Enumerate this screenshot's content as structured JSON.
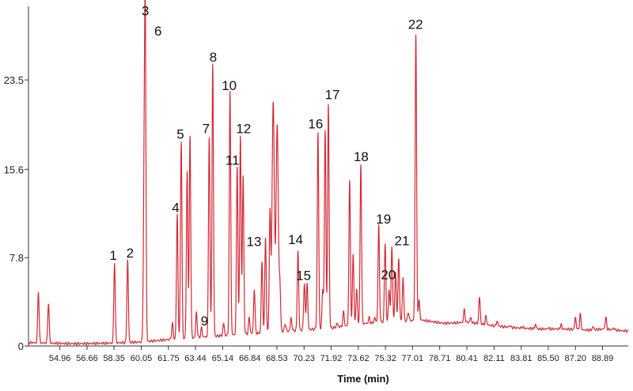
{
  "colors": {
    "trace": "#d42a36",
    "axis": "#333333",
    "text": "#111111"
  },
  "chart_data": {
    "type": "line",
    "title": "",
    "xlabel": "Time (min)",
    "ylabel": "",
    "xlim": [
      53.0,
      90.5
    ],
    "ylim": [
      0,
      30.0
    ],
    "x_ticks": [
      "54.96",
      "56.66",
      "58.35",
      "60.05",
      "61.75",
      "63.44",
      "65.14",
      "66.84",
      "68.53",
      "70.23",
      "71.92",
      "73.62",
      "75.32",
      "77.01",
      "78.71",
      "80.41",
      "82.11",
      "83.81",
      "85.50",
      "87.20",
      "88.89"
    ],
    "y_ticks": [
      "0",
      "7.8",
      "15.6",
      "23.5"
    ],
    "grid": false,
    "legend": "none",
    "baseline": [
      [
        53.0,
        0.3
      ],
      [
        54.5,
        0.25
      ],
      [
        56.0,
        0.2
      ],
      [
        58.0,
        0.25
      ],
      [
        60.0,
        0.35
      ],
      [
        62.0,
        0.6
      ],
      [
        64.0,
        0.8
      ],
      [
        66.0,
        1.0
      ],
      [
        68.0,
        1.2
      ],
      [
        70.0,
        1.4
      ],
      [
        72.0,
        1.6
      ],
      [
        73.5,
        1.9
      ],
      [
        75.0,
        2.1
      ],
      [
        76.5,
        2.2
      ],
      [
        77.5,
        2.3
      ],
      [
        79.0,
        2.0
      ],
      [
        80.5,
        2.1
      ],
      [
        82.0,
        1.8
      ],
      [
        83.5,
        1.6
      ],
      [
        85.0,
        1.5
      ],
      [
        86.5,
        1.5
      ],
      [
        88.0,
        1.4
      ],
      [
        89.0,
        1.5
      ],
      [
        90.5,
        1.3
      ]
    ],
    "peaks": [
      {
        "rt": 53.62,
        "h": 4.8,
        "label": ""
      },
      {
        "rt": 54.25,
        "h": 3.8,
        "label": ""
      },
      {
        "rt": 58.38,
        "h": 7.4,
        "label": "1"
      },
      {
        "rt": 59.2,
        "h": 7.6,
        "label": "2"
      },
      {
        "rt": 60.3,
        "h": 29.0,
        "label": "3"
      },
      {
        "rt": 60.22,
        "h": 12.0,
        "label": ""
      },
      {
        "rt": 62.0,
        "h": 2.0,
        "label": ""
      },
      {
        "rt": 62.3,
        "h": 11.6,
        "label": "4"
      },
      {
        "rt": 62.55,
        "h": 18.1,
        "label": "5"
      },
      {
        "rt": 62.92,
        "h": 15.4,
        "label": ""
      },
      {
        "rt": 63.1,
        "h": 18.6,
        "label": "6"
      },
      {
        "rt": 63.5,
        "h": 3.0,
        "label": ""
      },
      {
        "rt": 63.82,
        "h": 1.6,
        "label": "9"
      },
      {
        "rt": 64.3,
        "h": 18.5,
        "label": "7"
      },
      {
        "rt": 64.52,
        "h": 24.9,
        "label": "8"
      },
      {
        "rt": 65.2,
        "h": 2.0,
        "label": ""
      },
      {
        "rt": 65.6,
        "h": 22.4,
        "label": "10"
      },
      {
        "rt": 66.05,
        "h": 15.8,
        "label": "11"
      },
      {
        "rt": 66.25,
        "h": 18.6,
        "label": "12"
      },
      {
        "rt": 66.42,
        "h": 15.0,
        "label": ""
      },
      {
        "rt": 66.8,
        "h": 2.5,
        "label": ""
      },
      {
        "rt": 67.12,
        "h": 5.0,
        "label": "13"
      },
      {
        "rt": 67.6,
        "h": 7.4,
        "label": ""
      },
      {
        "rt": 67.82,
        "h": 9.5,
        "label": ""
      },
      {
        "rt": 68.1,
        "h": 11.8,
        "label": ""
      },
      {
        "rt": 68.3,
        "h": 21.6,
        "label": ""
      },
      {
        "rt": 68.55,
        "h": 19.4,
        "label": ""
      },
      {
        "rt": 68.72,
        "h": 5.0,
        "label": ""
      },
      {
        "rt": 69.05,
        "h": 2.0,
        "label": ""
      },
      {
        "rt": 69.42,
        "h": 2.5,
        "label": ""
      },
      {
        "rt": 69.85,
        "h": 8.4,
        "label": "14"
      },
      {
        "rt": 70.25,
        "h": 5.6,
        "label": "15"
      },
      {
        "rt": 70.42,
        "h": 5.6,
        "label": ""
      },
      {
        "rt": 71.1,
        "h": 18.8,
        "label": "16"
      },
      {
        "rt": 71.4,
        "h": 5.0,
        "label": ""
      },
      {
        "rt": 71.55,
        "h": 19.0,
        "label": ""
      },
      {
        "rt": 71.75,
        "h": 21.3,
        "label": "17"
      },
      {
        "rt": 72.3,
        "h": 2.0,
        "label": ""
      },
      {
        "rt": 72.7,
        "h": 3.0,
        "label": ""
      },
      {
        "rt": 73.08,
        "h": 14.6,
        "label": ""
      },
      {
        "rt": 73.3,
        "h": 8.0,
        "label": ""
      },
      {
        "rt": 73.52,
        "h": 5.0,
        "label": ""
      },
      {
        "rt": 73.78,
        "h": 16.1,
        "label": "18"
      },
      {
        "rt": 74.0,
        "h": 2.0,
        "label": ""
      },
      {
        "rt": 74.3,
        "h": 2.5,
        "label": ""
      },
      {
        "rt": 74.65,
        "h": 2.5,
        "label": ""
      },
      {
        "rt": 74.9,
        "h": 10.6,
        "label": "19"
      },
      {
        "rt": 75.3,
        "h": 9.0,
        "label": ""
      },
      {
        "rt": 75.55,
        "h": 5.0,
        "label": "20"
      },
      {
        "rt": 75.72,
        "h": 8.8,
        "label": ""
      },
      {
        "rt": 75.95,
        "h": 6.5,
        "label": "21"
      },
      {
        "rt": 76.15,
        "h": 7.8,
        "label": ""
      },
      {
        "rt": 76.42,
        "h": 6.0,
        "label": ""
      },
      {
        "rt": 76.75,
        "h": 3.0,
        "label": ""
      },
      {
        "rt": 77.22,
        "h": 27.5,
        "label": "22"
      },
      {
        "rt": 77.42,
        "h": 4.0,
        "label": ""
      },
      {
        "rt": 78.2,
        "h": 1.5,
        "label": ""
      },
      {
        "rt": 79.2,
        "h": 1.8,
        "label": ""
      },
      {
        "rt": 79.65,
        "h": 1.6,
        "label": ""
      },
      {
        "rt": 80.25,
        "h": 3.2,
        "label": ""
      },
      {
        "rt": 80.65,
        "h": 2.5,
        "label": ""
      },
      {
        "rt": 81.2,
        "h": 4.3,
        "label": ""
      },
      {
        "rt": 81.6,
        "h": 2.6,
        "label": ""
      },
      {
        "rt": 82.3,
        "h": 2.2,
        "label": ""
      },
      {
        "rt": 83.1,
        "h": 1.8,
        "label": ""
      },
      {
        "rt": 83.9,
        "h": 1.7,
        "label": ""
      },
      {
        "rt": 84.7,
        "h": 1.9,
        "label": ""
      },
      {
        "rt": 85.5,
        "h": 1.6,
        "label": ""
      },
      {
        "rt": 86.3,
        "h": 1.9,
        "label": ""
      },
      {
        "rt": 87.2,
        "h": 2.5,
        "label": ""
      },
      {
        "rt": 87.5,
        "h": 2.8,
        "label": ""
      },
      {
        "rt": 88.3,
        "h": 1.7,
        "label": ""
      },
      {
        "rt": 89.1,
        "h": 2.5,
        "label": ""
      },
      {
        "rt": 89.6,
        "h": 1.6,
        "label": ""
      }
    ]
  }
}
